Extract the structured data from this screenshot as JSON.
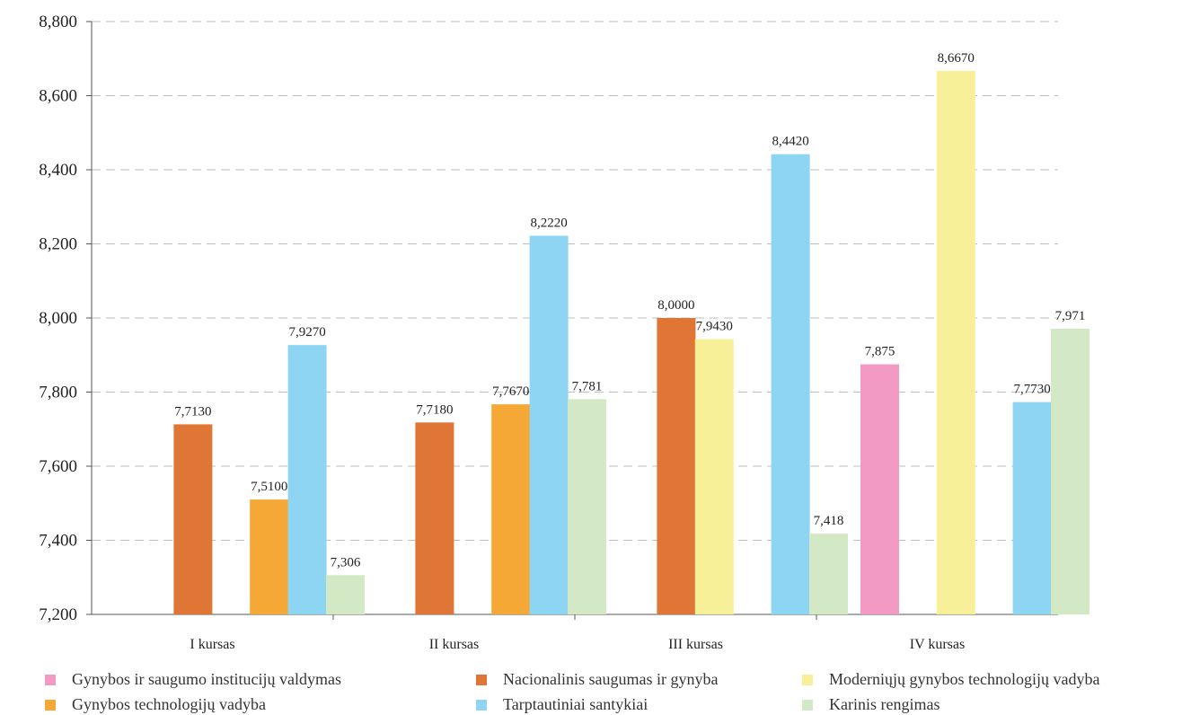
{
  "chart_data": {
    "type": "bar",
    "categories": [
      "I kursas",
      "II kursas",
      "III kursas",
      "IV kursas"
    ],
    "ylim": [
      7.2,
      8.8
    ],
    "y_ticks": [
      "7,200",
      "7,400",
      "7,600",
      "7,800",
      "8,000",
      "8,200",
      "8,400",
      "8,600",
      "8,800"
    ],
    "grid": "horizontal dashed",
    "legend_position": "bottom",
    "series": [
      {
        "name": "Gynybos ir saugumo institucijų valdymas",
        "color": "#F29AC3",
        "values": [
          null,
          null,
          null,
          7.875
        ],
        "labels": [
          "",
          "",
          "",
          "7,875"
        ]
      },
      {
        "name": "Nacionalinis saugumas ir gynyba",
        "color": "#DF7636",
        "values": [
          7.713,
          7.718,
          8.0,
          null
        ],
        "labels": [
          "7,7130",
          "7,7180",
          "8,0000",
          ""
        ]
      },
      {
        "name": "Moderniųjų gynybos technologijų vadyba",
        "color": "#F7F099",
        "values": [
          null,
          null,
          7.943,
          8.667
        ],
        "labels": [
          "",
          "",
          "7,9430",
          "8,6670"
        ]
      },
      {
        "name": "Gynybos technologijų vadyba",
        "color": "#F5A836",
        "values": [
          7.51,
          7.767,
          null,
          null
        ],
        "labels": [
          "7,5100",
          "7,7670",
          "",
          ""
        ]
      },
      {
        "name": "Tarptautiniai santykiai",
        "color": "#8ED5F3",
        "values": [
          7.927,
          8.222,
          8.442,
          7.773
        ],
        "labels": [
          "7,9270",
          "8,2220",
          "8,4420",
          "7,7730"
        ]
      },
      {
        "name": "Karinis rengimas",
        "color": "#D3E8C4",
        "values": [
          7.306,
          7.781,
          7.418,
          7.971
        ],
        "labels": [
          "7,306",
          "7,781",
          "7,418",
          "7,971"
        ]
      }
    ]
  },
  "legend": {
    "items": [
      {
        "label": "Gynybos ir saugumo institucijų valdymas",
        "color": "#F29AC3"
      },
      {
        "label": "Nacionalinis saugumas ir gynyba",
        "color": "#DF7636"
      },
      {
        "label": "Moderniųjų gynybos technologijų vadyba",
        "color": "#F7F099"
      },
      {
        "label": "Gynybos technologijų vadyba",
        "color": "#F5A836"
      },
      {
        "label": "Tarptautiniai santykiai",
        "color": "#8ED5F3"
      },
      {
        "label": "Karinis rengimas",
        "color": "#D3E8C4"
      }
    ]
  }
}
